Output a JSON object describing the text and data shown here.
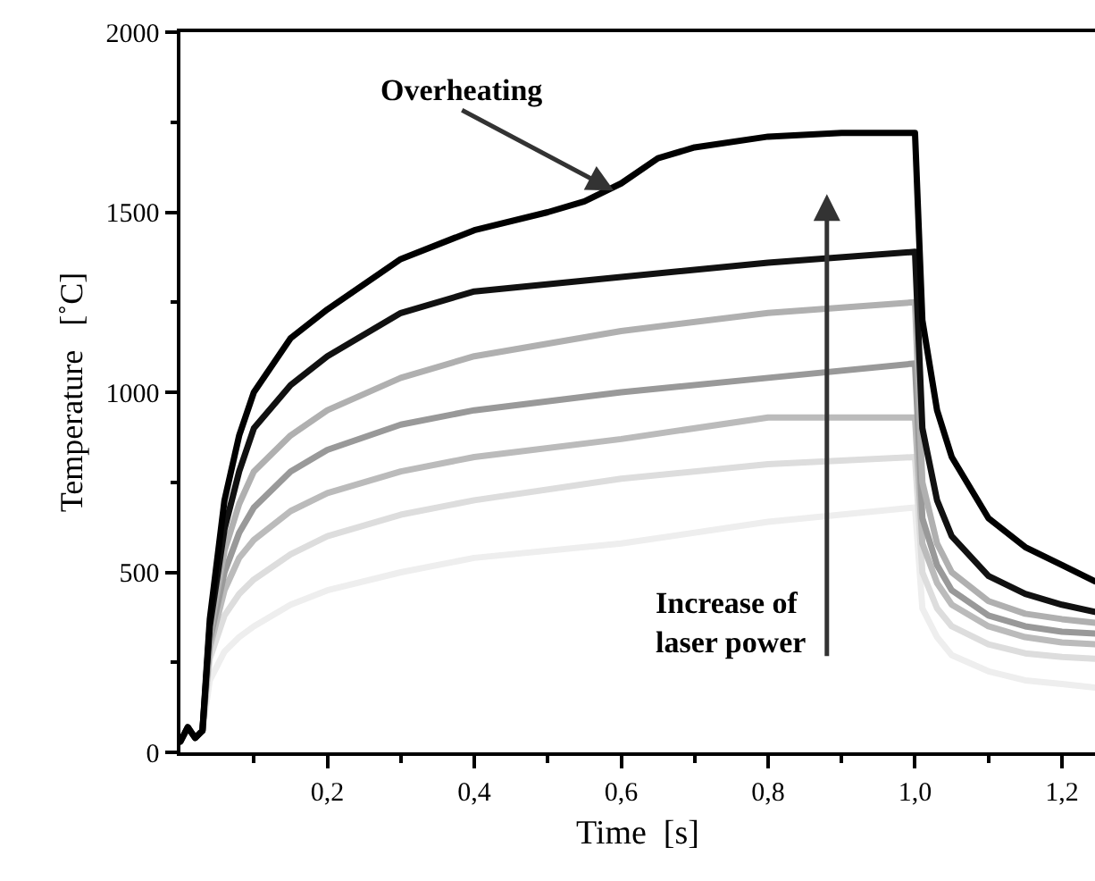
{
  "chart_data": {
    "type": "line",
    "xlabel": "Time  [s]",
    "ylabel": "Temperature   [˚C]",
    "xlim": [
      0,
      1.245
    ],
    "ylim": [
      0,
      2000
    ],
    "xticks": [
      {
        "value": 0.1,
        "label": null
      },
      {
        "value": 0.2,
        "label": "0,2"
      },
      {
        "value": 0.3,
        "label": null
      },
      {
        "value": 0.4,
        "label": "0,4"
      },
      {
        "value": 0.5,
        "label": null
      },
      {
        "value": 0.6,
        "label": "0,6"
      },
      {
        "value": 0.7,
        "label": null
      },
      {
        "value": 0.8,
        "label": "0,8"
      },
      {
        "value": 0.9,
        "label": null
      },
      {
        "value": 1.0,
        "label": "1,0"
      },
      {
        "value": 1.1,
        "label": null
      },
      {
        "value": 1.2,
        "label": "1,2"
      }
    ],
    "yticks": [
      0,
      {
        "value": 250,
        "label": null
      },
      500,
      {
        "value": 750,
        "label": null
      },
      1000,
      {
        "value": 1250,
        "label": null
      },
      1500,
      {
        "value": 1750,
        "label": null
      },
      2000
    ],
    "marker": "none",
    "line_style": "solid",
    "series": [
      {
        "color": "#000000",
        "x": [
          0,
          0.01,
          0.02,
          0.03,
          0.04,
          0.06,
          0.08,
          0.1,
          0.15,
          0.2,
          0.3,
          0.4,
          0.5,
          0.55,
          0.6,
          0.65,
          0.7,
          0.8,
          0.9,
          1.0,
          1.01,
          1.03,
          1.05,
          1.1,
          1.15,
          1.2,
          1.245
        ],
        "values": [
          30,
          70,
          40,
          60,
          370,
          700,
          880,
          1000,
          1150,
          1230,
          1370,
          1450,
          1500,
          1530,
          1580,
          1650,
          1680,
          1710,
          1720,
          1720,
          1200,
          950,
          820,
          650,
          570,
          520,
          475
        ]
      },
      {
        "color": "#111111",
        "x": [
          0,
          0.01,
          0.02,
          0.03,
          0.04,
          0.06,
          0.08,
          0.1,
          0.15,
          0.2,
          0.3,
          0.4,
          0.6,
          0.8,
          1.0,
          1.01,
          1.03,
          1.05,
          1.1,
          1.15,
          1.2,
          1.245
        ],
        "values": [
          30,
          70,
          40,
          60,
          350,
          620,
          780,
          900,
          1020,
          1100,
          1220,
          1280,
          1320,
          1360,
          1390,
          900,
          700,
          600,
          490,
          440,
          410,
          390
        ]
      },
      {
        "color": "#b0b0b0",
        "x": [
          0.03,
          0.04,
          0.06,
          0.08,
          0.1,
          0.15,
          0.2,
          0.3,
          0.4,
          0.6,
          0.8,
          1.0,
          1.01,
          1.03,
          1.05,
          1.1,
          1.15,
          1.2,
          1.245
        ],
        "values": [
          60,
          330,
          560,
          690,
          780,
          880,
          950,
          1040,
          1100,
          1170,
          1220,
          1250,
          750,
          580,
          500,
          420,
          385,
          370,
          360
        ]
      },
      {
        "color": "#999999",
        "x": [
          0.03,
          0.04,
          0.06,
          0.08,
          0.1,
          0.15,
          0.2,
          0.3,
          0.4,
          0.6,
          0.8,
          1.0,
          1.01,
          1.03,
          1.05,
          1.1,
          1.15,
          1.2,
          1.245
        ],
        "values": [
          60,
          310,
          500,
          610,
          680,
          780,
          840,
          910,
          950,
          1000,
          1040,
          1080,
          650,
          520,
          450,
          380,
          350,
          335,
          330
        ]
      },
      {
        "color": "#bbbbbb",
        "x": [
          0.03,
          0.04,
          0.06,
          0.08,
          0.1,
          0.15,
          0.2,
          0.3,
          0.4,
          0.6,
          0.8,
          1.0,
          1.01,
          1.03,
          1.05,
          1.1,
          1.15,
          1.2,
          1.245
        ],
        "values": [
          60,
          290,
          450,
          540,
          590,
          670,
          720,
          780,
          820,
          870,
          930,
          930,
          580,
          470,
          410,
          350,
          320,
          305,
          300
        ]
      },
      {
        "color": "#dddddd",
        "x": [
          0.03,
          0.04,
          0.06,
          0.08,
          0.1,
          0.15,
          0.2,
          0.3,
          0.4,
          0.6,
          0.8,
          1.0,
          1.01,
          1.03,
          1.05,
          1.1,
          1.15,
          1.2,
          1.245
        ],
        "values": [
          60,
          260,
          380,
          440,
          480,
          550,
          600,
          660,
          700,
          760,
          800,
          820,
          500,
          400,
          350,
          300,
          275,
          265,
          260
        ]
      },
      {
        "color": "#eeeeee",
        "x": [
          0.03,
          0.04,
          0.06,
          0.08,
          0.1,
          0.15,
          0.2,
          0.3,
          0.4,
          0.6,
          0.8,
          1.0,
          1.01,
          1.03,
          1.05,
          1.1,
          1.15,
          1.2,
          1.245
        ],
        "values": [
          60,
          200,
          280,
          320,
          350,
          410,
          450,
          500,
          540,
          580,
          640,
          680,
          400,
          320,
          270,
          225,
          200,
          190,
          180
        ]
      }
    ],
    "annotations": [
      {
        "text": "Overheating",
        "x": 0.59,
        "y": 1560
      },
      "Increase of\nlaser power"
    ]
  }
}
